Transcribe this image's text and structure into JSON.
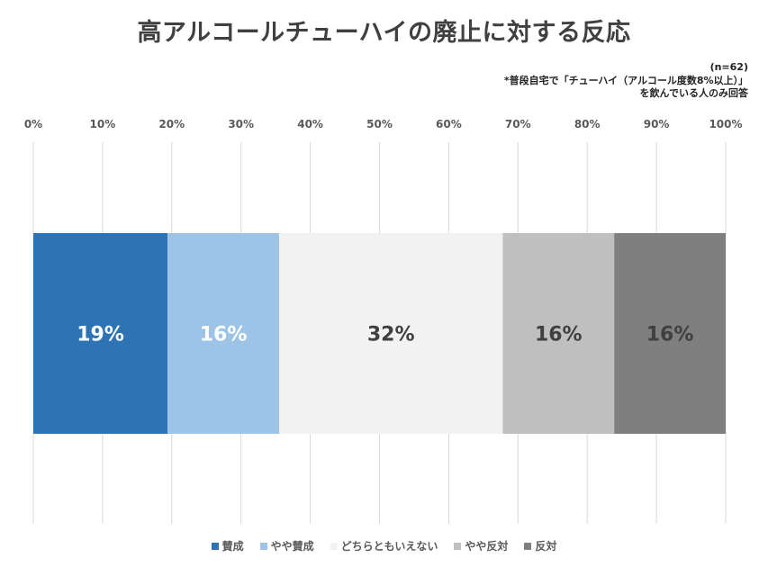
{
  "chart_data": {
    "type": "bar",
    "orientation": "horizontal-stacked-100",
    "title": "高アルコールチューハイの廃止に対する反応",
    "sample_note": "(n=62)",
    "footnote_line1": "*普段自宅で「チューハイ（アルコール度数8%以上）」",
    "footnote_line2": "を飲んでいる人のみ回答",
    "xlim": [
      0,
      100
    ],
    "ticks": [
      "0%",
      "10%",
      "20%",
      "30%",
      "40%",
      "50%",
      "60%",
      "70%",
      "80%",
      "90%",
      "100%"
    ],
    "grid": true,
    "legend_position": "bottom",
    "series": [
      {
        "name": "賛成",
        "value": 19.4,
        "label": "19%",
        "color": "#2e74b5",
        "label_color": "#ffffff"
      },
      {
        "name": "やや賛成",
        "value": 16.1,
        "label": "16%",
        "color": "#9dc3e6",
        "label_color": "#ffffff"
      },
      {
        "name": "どちらともいえない",
        "value": 32.3,
        "label": "32%",
        "color": "#f2f2f2",
        "label_color": "#404040"
      },
      {
        "name": "やや反対",
        "value": 16.1,
        "label": "16%",
        "color": "#bfbfbf",
        "label_color": "#404040"
      },
      {
        "name": "反対",
        "value": 16.1,
        "label": "16%",
        "color": "#7f7f7f",
        "label_color": "#404040"
      }
    ]
  }
}
